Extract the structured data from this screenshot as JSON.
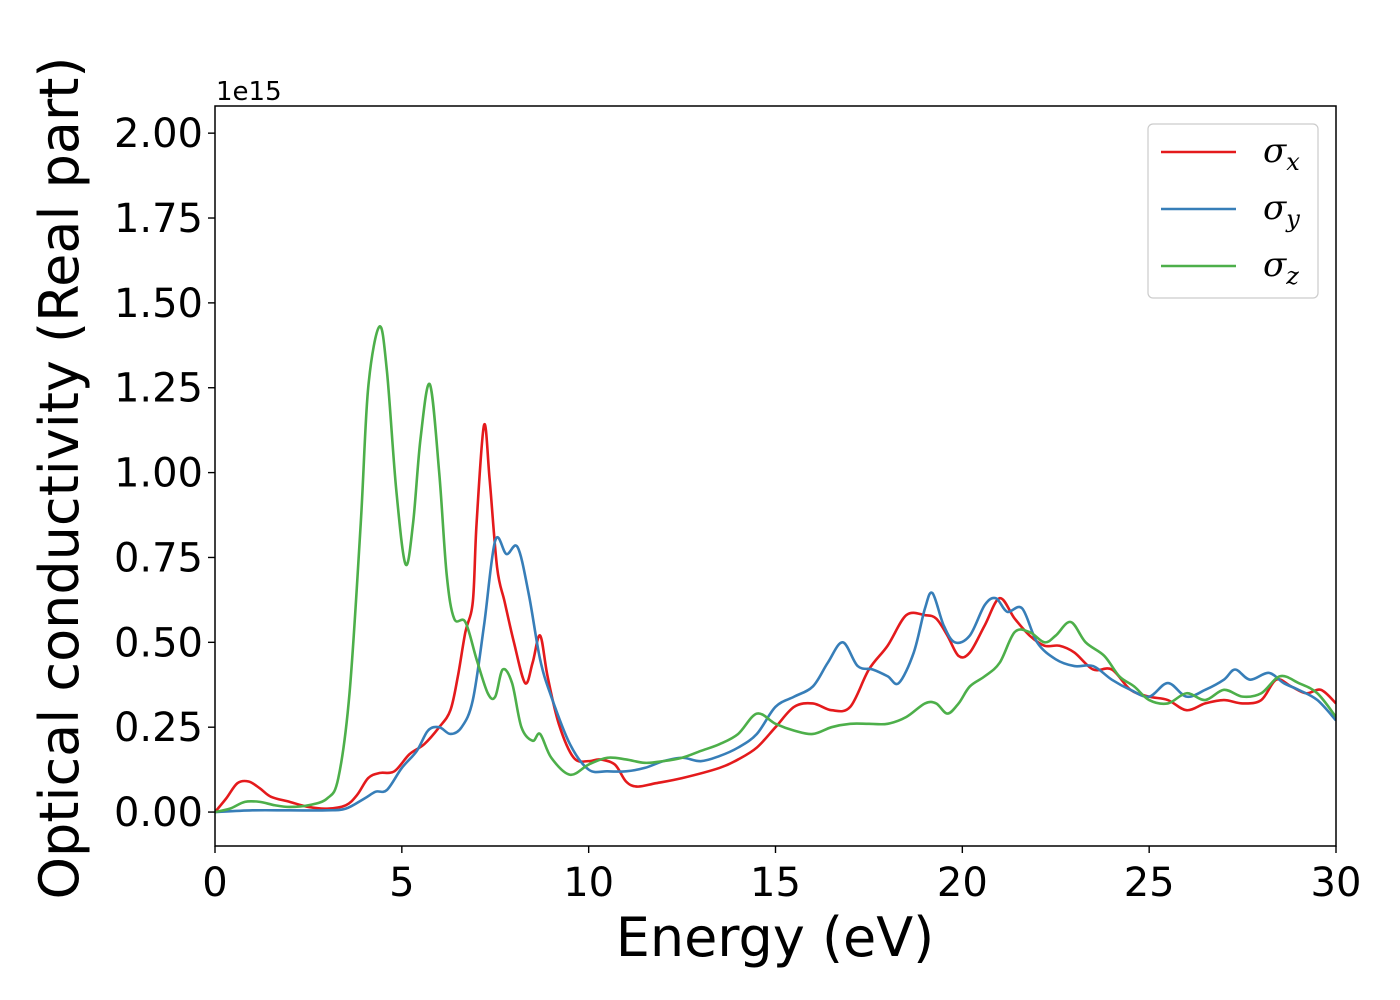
{
  "chart_data": {
    "type": "line",
    "xlabel": "Energy (eV)",
    "ylabel": "Optical conductivity (Real part)",
    "y_offset_label": "1e15",
    "xlim": [
      0,
      30
    ],
    "ylim": [
      -0.1,
      2.08
    ],
    "x_ticks": [
      0,
      5,
      10,
      15,
      20,
      25,
      30
    ],
    "x_tick_labels": [
      "0",
      "5",
      "10",
      "15",
      "20",
      "25",
      "30"
    ],
    "y_ticks": [
      0,
      0.25,
      0.5,
      0.75,
      1.0,
      1.25,
      1.5,
      1.75,
      2.0
    ],
    "y_tick_labels": [
      "0.00",
      "0.25",
      "0.50",
      "0.75",
      "1.00",
      "1.25",
      "1.50",
      "1.75",
      "2.00"
    ],
    "grid": false,
    "legend_position": "top-right",
    "series": [
      {
        "name": "σx",
        "legend_symbol": "σ",
        "legend_subscript": "x",
        "color": "#e41a1c",
        "points": [
          [
            0,
            0
          ],
          [
            0.3,
            0.04
          ],
          [
            0.6,
            0.085
          ],
          [
            0.9,
            0.09
          ],
          [
            1.2,
            0.07
          ],
          [
            1.5,
            0.045
          ],
          [
            2,
            0.03
          ],
          [
            2.5,
            0.015
          ],
          [
            3,
            0.01
          ],
          [
            3.5,
            0.02
          ],
          [
            3.8,
            0.05
          ],
          [
            4.1,
            0.1
          ],
          [
            4.4,
            0.115
          ],
          [
            4.8,
            0.12
          ],
          [
            5.2,
            0.17
          ],
          [
            5.6,
            0.2
          ],
          [
            6.0,
            0.25
          ],
          [
            6.3,
            0.3
          ],
          [
            6.5,
            0.4
          ],
          [
            6.7,
            0.53
          ],
          [
            6.9,
            0.62
          ],
          [
            7.0,
            0.85
          ],
          [
            7.2,
            1.14
          ],
          [
            7.35,
            0.98
          ],
          [
            7.55,
            0.72
          ],
          [
            7.75,
            0.62
          ],
          [
            8.0,
            0.5
          ],
          [
            8.3,
            0.38
          ],
          [
            8.5,
            0.44
          ],
          [
            8.7,
            0.52
          ],
          [
            8.9,
            0.4
          ],
          [
            9.2,
            0.26
          ],
          [
            9.6,
            0.16
          ],
          [
            10.0,
            0.15
          ],
          [
            10.3,
            0.155
          ],
          [
            10.7,
            0.14
          ],
          [
            11.0,
            0.09
          ],
          [
            11.3,
            0.075
          ],
          [
            11.8,
            0.085
          ],
          [
            12.5,
            0.1
          ],
          [
            13.5,
            0.13
          ],
          [
            14,
            0.155
          ],
          [
            14.5,
            0.19
          ],
          [
            15,
            0.25
          ],
          [
            15.5,
            0.31
          ],
          [
            16,
            0.32
          ],
          [
            16.5,
            0.3
          ],
          [
            17,
            0.31
          ],
          [
            17.5,
            0.42
          ],
          [
            18,
            0.49
          ],
          [
            18.5,
            0.58
          ],
          [
            19.0,
            0.58
          ],
          [
            19.3,
            0.57
          ],
          [
            19.6,
            0.52
          ],
          [
            19.9,
            0.46
          ],
          [
            20.2,
            0.47
          ],
          [
            20.6,
            0.55
          ],
          [
            21.0,
            0.63
          ],
          [
            21.4,
            0.57
          ],
          [
            21.8,
            0.52
          ],
          [
            22.2,
            0.49
          ],
          [
            22.6,
            0.49
          ],
          [
            23,
            0.47
          ],
          [
            23.5,
            0.42
          ],
          [
            24,
            0.42
          ],
          [
            24.5,
            0.36
          ],
          [
            25,
            0.34
          ],
          [
            25.5,
            0.33
          ],
          [
            26,
            0.3
          ],
          [
            26.5,
            0.32
          ],
          [
            27,
            0.33
          ],
          [
            27.5,
            0.32
          ],
          [
            28,
            0.33
          ],
          [
            28.4,
            0.39
          ],
          [
            28.8,
            0.37
          ],
          [
            29.2,
            0.35
          ],
          [
            29.6,
            0.36
          ],
          [
            30,
            0.32
          ]
        ]
      },
      {
        "name": "σy",
        "legend_symbol": "σ",
        "legend_subscript": "y",
        "color": "#377eb8",
        "points": [
          [
            0,
            0
          ],
          [
            1,
            0.005
          ],
          [
            2,
            0.005
          ],
          [
            3,
            0.005
          ],
          [
            3.5,
            0.01
          ],
          [
            4,
            0.04
          ],
          [
            4.3,
            0.06
          ],
          [
            4.6,
            0.065
          ],
          [
            5.0,
            0.13
          ],
          [
            5.4,
            0.18
          ],
          [
            5.7,
            0.24
          ],
          [
            6.0,
            0.25
          ],
          [
            6.3,
            0.23
          ],
          [
            6.6,
            0.25
          ],
          [
            6.9,
            0.33
          ],
          [
            7.2,
            0.55
          ],
          [
            7.5,
            0.8
          ],
          [
            7.8,
            0.76
          ],
          [
            8.1,
            0.78
          ],
          [
            8.4,
            0.64
          ],
          [
            8.7,
            0.45
          ],
          [
            9.0,
            0.34
          ],
          [
            9.5,
            0.2
          ],
          [
            10.0,
            0.125
          ],
          [
            10.5,
            0.12
          ],
          [
            11,
            0.12
          ],
          [
            11.5,
            0.13
          ],
          [
            12,
            0.15
          ],
          [
            12.5,
            0.16
          ],
          [
            13,
            0.15
          ],
          [
            13.5,
            0.165
          ],
          [
            14,
            0.19
          ],
          [
            14.5,
            0.23
          ],
          [
            15,
            0.31
          ],
          [
            15.5,
            0.34
          ],
          [
            16,
            0.37
          ],
          [
            16.4,
            0.44
          ],
          [
            16.8,
            0.5
          ],
          [
            17.2,
            0.43
          ],
          [
            17.6,
            0.42
          ],
          [
            18.0,
            0.4
          ],
          [
            18.3,
            0.38
          ],
          [
            18.7,
            0.47
          ],
          [
            19.0,
            0.6
          ],
          [
            19.2,
            0.645
          ],
          [
            19.5,
            0.55
          ],
          [
            19.8,
            0.5
          ],
          [
            20.2,
            0.52
          ],
          [
            20.6,
            0.61
          ],
          [
            20.9,
            0.63
          ],
          [
            21.2,
            0.59
          ],
          [
            21.6,
            0.6
          ],
          [
            22,
            0.5
          ],
          [
            22.5,
            0.45
          ],
          [
            23,
            0.43
          ],
          [
            23.5,
            0.43
          ],
          [
            24,
            0.39
          ],
          [
            24.5,
            0.36
          ],
          [
            25,
            0.34
          ],
          [
            25.5,
            0.38
          ],
          [
            26,
            0.34
          ],
          [
            26.5,
            0.36
          ],
          [
            27,
            0.39
          ],
          [
            27.3,
            0.42
          ],
          [
            27.7,
            0.39
          ],
          [
            28.2,
            0.41
          ],
          [
            28.6,
            0.38
          ],
          [
            29,
            0.36
          ],
          [
            29.5,
            0.33
          ],
          [
            30,
            0.27
          ]
        ]
      },
      {
        "name": "σz",
        "legend_symbol": "σ",
        "legend_subscript": "z",
        "color": "#4daf4a",
        "points": [
          [
            0,
            0
          ],
          [
            0.4,
            0.01
          ],
          [
            0.8,
            0.03
          ],
          [
            1.2,
            0.03
          ],
          [
            1.6,
            0.02
          ],
          [
            2,
            0.015
          ],
          [
            2.5,
            0.02
          ],
          [
            3.0,
            0.04
          ],
          [
            3.3,
            0.1
          ],
          [
            3.6,
            0.35
          ],
          [
            3.9,
            0.85
          ],
          [
            4.1,
            1.25
          ],
          [
            4.4,
            1.43
          ],
          [
            4.6,
            1.3
          ],
          [
            4.85,
            0.95
          ],
          [
            5.1,
            0.73
          ],
          [
            5.3,
            0.85
          ],
          [
            5.5,
            1.1
          ],
          [
            5.75,
            1.26
          ],
          [
            6.0,
            1.0
          ],
          [
            6.2,
            0.7
          ],
          [
            6.4,
            0.57
          ],
          [
            6.7,
            0.56
          ],
          [
            7.0,
            0.45
          ],
          [
            7.3,
            0.35
          ],
          [
            7.5,
            0.34
          ],
          [
            7.7,
            0.42
          ],
          [
            7.95,
            0.38
          ],
          [
            8.2,
            0.25
          ],
          [
            8.5,
            0.21
          ],
          [
            8.7,
            0.23
          ],
          [
            9.0,
            0.16
          ],
          [
            9.5,
            0.11
          ],
          [
            10.0,
            0.14
          ],
          [
            10.5,
            0.16
          ],
          [
            11,
            0.155
          ],
          [
            11.5,
            0.145
          ],
          [
            12,
            0.15
          ],
          [
            12.5,
            0.16
          ],
          [
            13,
            0.18
          ],
          [
            13.5,
            0.2
          ],
          [
            14.0,
            0.23
          ],
          [
            14.5,
            0.29
          ],
          [
            15.0,
            0.26
          ],
          [
            15.5,
            0.24
          ],
          [
            16,
            0.23
          ],
          [
            16.5,
            0.25
          ],
          [
            17,
            0.26
          ],
          [
            17.5,
            0.26
          ],
          [
            18,
            0.26
          ],
          [
            18.5,
            0.28
          ],
          [
            19.0,
            0.32
          ],
          [
            19.3,
            0.32
          ],
          [
            19.6,
            0.29
          ],
          [
            19.9,
            0.32
          ],
          [
            20.2,
            0.37
          ],
          [
            20.6,
            0.4
          ],
          [
            21.0,
            0.44
          ],
          [
            21.4,
            0.53
          ],
          [
            21.8,
            0.53
          ],
          [
            22.2,
            0.5
          ],
          [
            22.5,
            0.52
          ],
          [
            22.9,
            0.56
          ],
          [
            23.3,
            0.5
          ],
          [
            23.8,
            0.46
          ],
          [
            24.2,
            0.4
          ],
          [
            24.6,
            0.37
          ],
          [
            25,
            0.33
          ],
          [
            25.5,
            0.32
          ],
          [
            26,
            0.35
          ],
          [
            26.5,
            0.33
          ],
          [
            27,
            0.36
          ],
          [
            27.5,
            0.34
          ],
          [
            28,
            0.35
          ],
          [
            28.5,
            0.4
          ],
          [
            29,
            0.38
          ],
          [
            29.5,
            0.35
          ],
          [
            30,
            0.28
          ]
        ]
      }
    ]
  }
}
